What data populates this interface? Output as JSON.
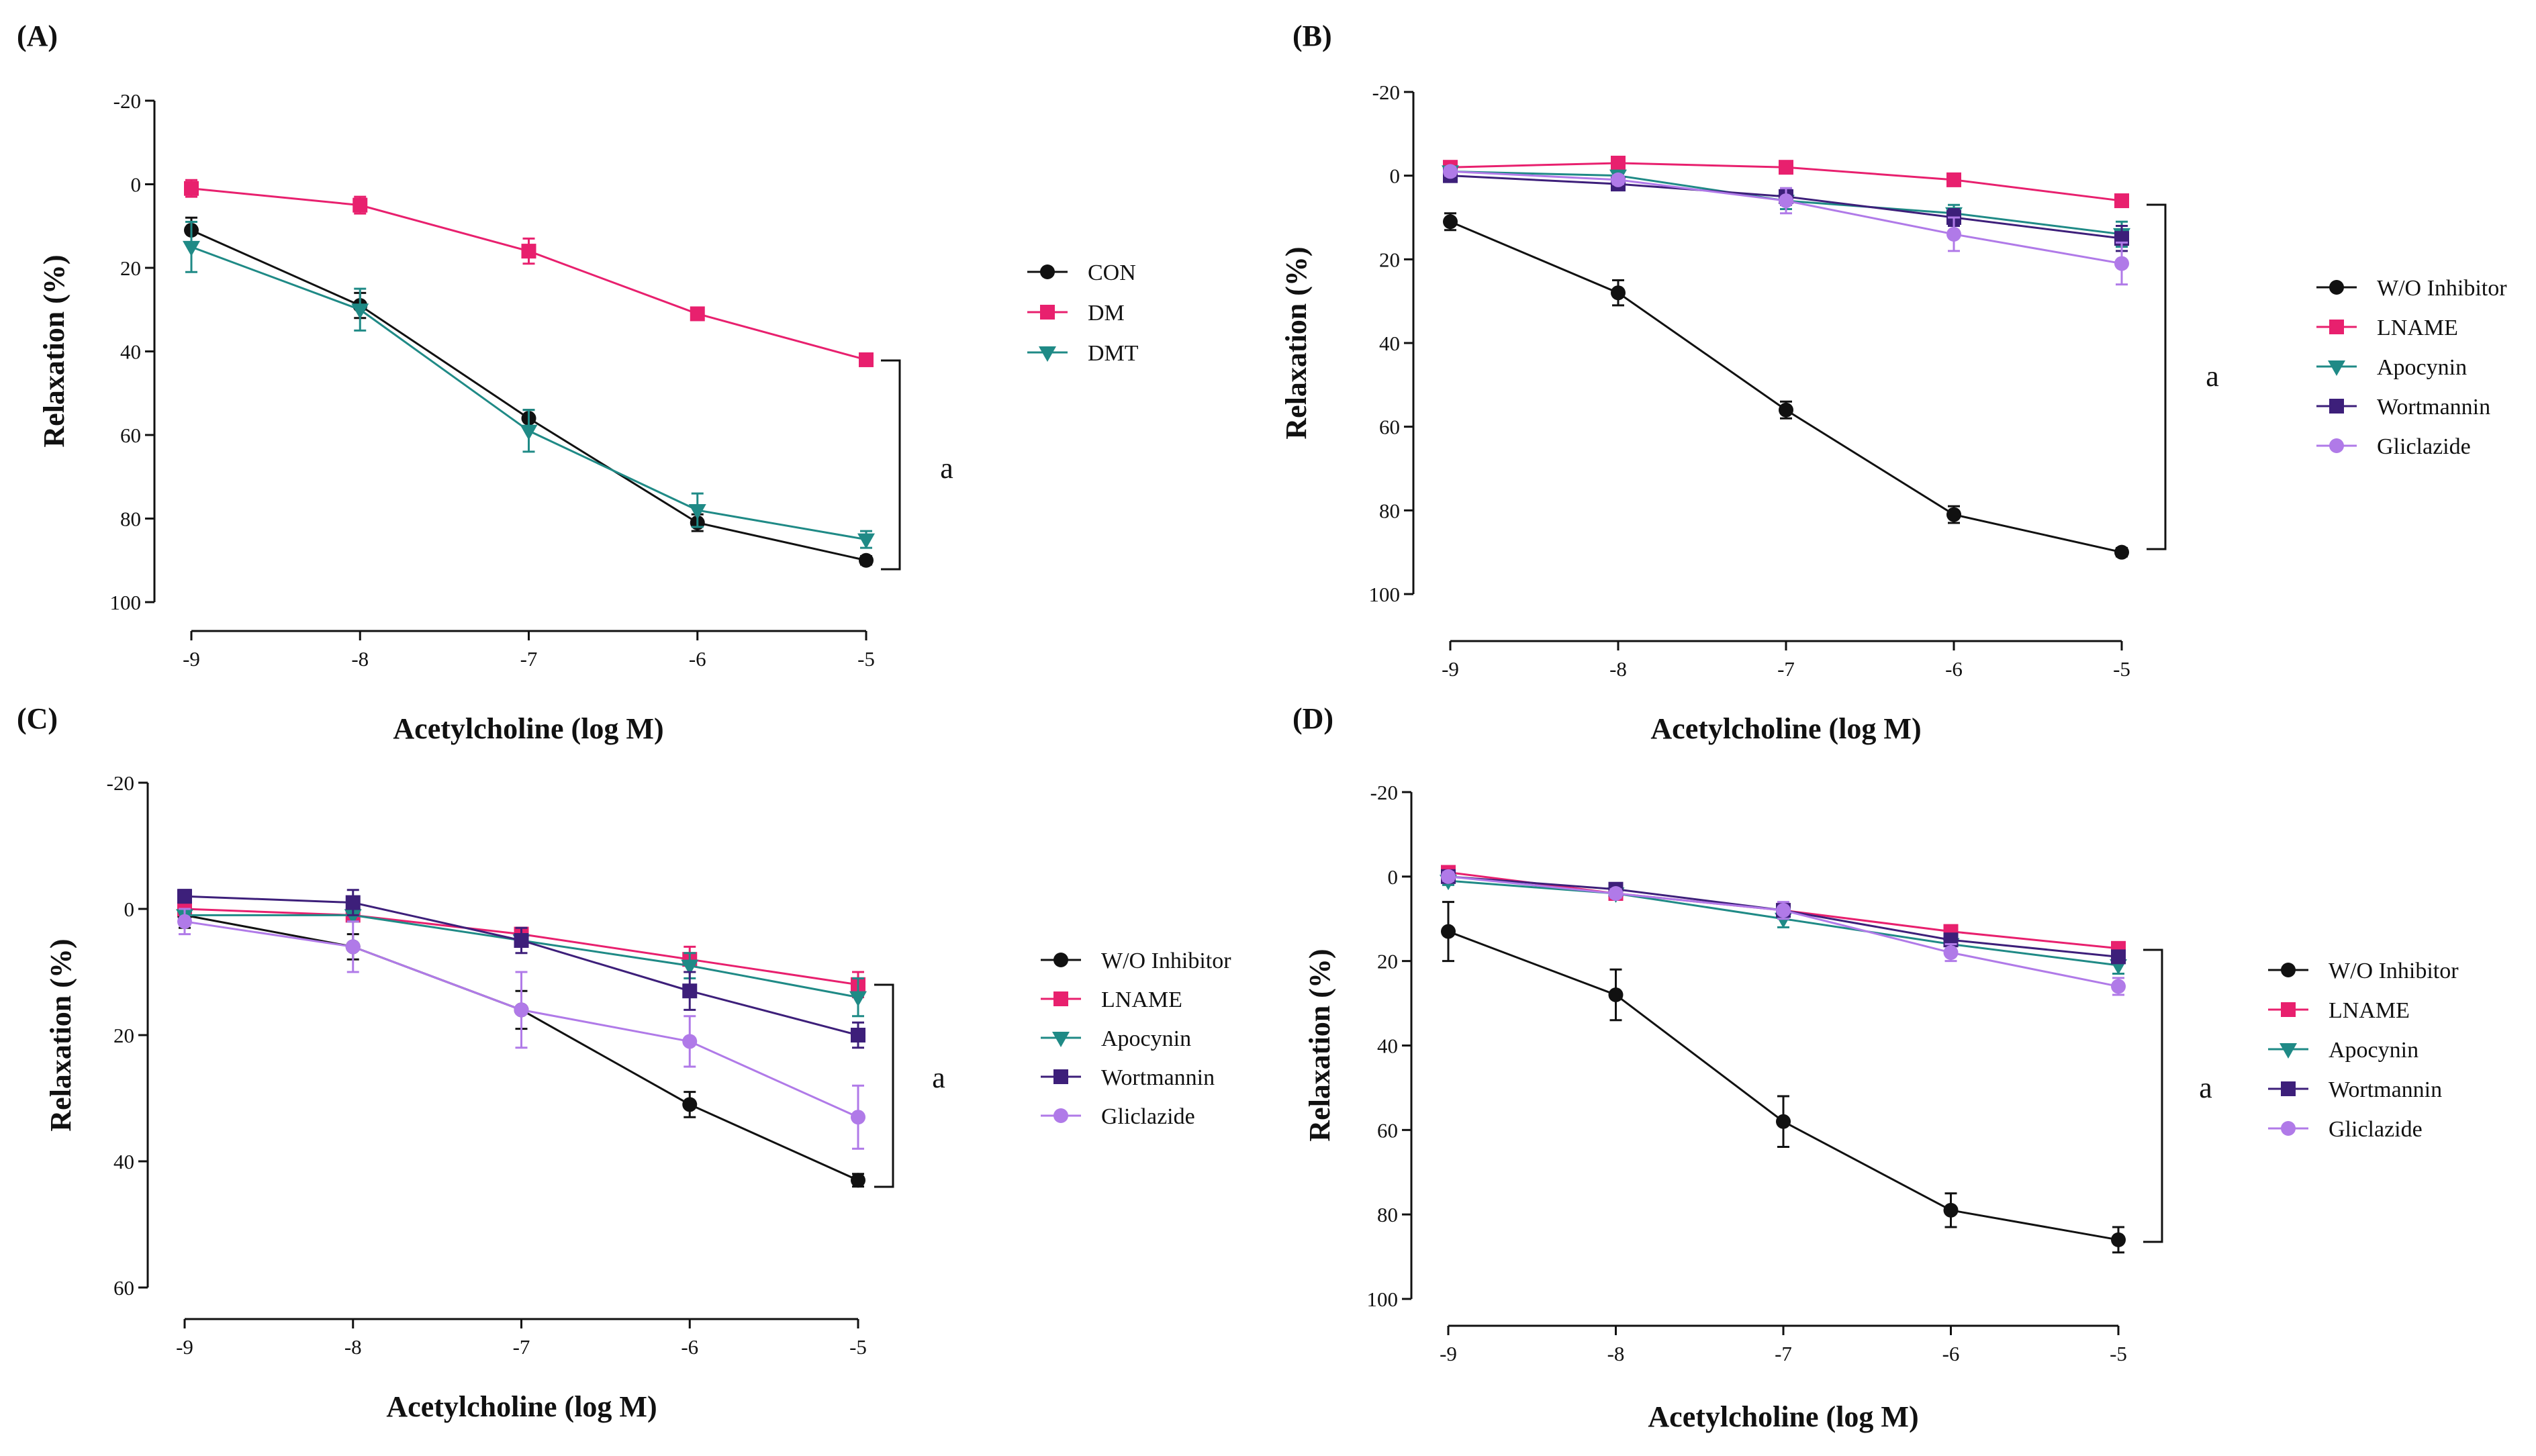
{
  "colors": {
    "black": "#111111",
    "pink": "#e8206e",
    "teal": "#1f8a86",
    "indigo": "#3d1f7a",
    "violet": "#b07ae8"
  },
  "chart_data": [
    {
      "panel": "(A)",
      "type": "line",
      "xlabel": "Acetylcholine (log M)",
      "ylabel": "Relaxation (%)",
      "x": [
        -9,
        -8,
        -7,
        -6,
        -5
      ],
      "xticks": [
        "-9",
        "-8",
        "-7",
        "-6",
        "-5"
      ],
      "ylim": [
        -20,
        100
      ],
      "yticks": [
        "-20",
        "0",
        "20",
        "40",
        "60",
        "80",
        "100"
      ],
      "yinverted": true,
      "legend_position": "right",
      "significance": "a",
      "series": [
        {
          "name": "CON",
          "color": "#111111",
          "marker": "circle",
          "values": [
            11,
            29,
            56,
            81,
            90
          ],
          "errors": [
            3,
            3,
            2,
            2,
            1
          ]
        },
        {
          "name": "DM",
          "color": "#e8206e",
          "marker": "square",
          "values": [
            1,
            5,
            16,
            31,
            42
          ],
          "errors": [
            2,
            2,
            3,
            1,
            1
          ]
        },
        {
          "name": "DMT",
          "color": "#1f8a86",
          "marker": "triangle-down",
          "values": [
            15,
            30,
            59,
            78,
            85
          ],
          "errors": [
            6,
            5,
            5,
            4,
            2
          ]
        }
      ]
    },
    {
      "panel": "(B)",
      "type": "line",
      "xlabel": "Acetylcholine (log M)",
      "ylabel": "Relaxation (%)",
      "x": [
        -9,
        -8,
        -7,
        -6,
        -5
      ],
      "xticks": [
        "-9",
        "-8",
        "-7",
        "-6",
        "-5"
      ],
      "ylim": [
        -20,
        100
      ],
      "yticks": [
        "-20",
        "0",
        "20",
        "40",
        "60",
        "80",
        "100"
      ],
      "yinverted": true,
      "legend_position": "right",
      "significance": "a",
      "series": [
        {
          "name": "W/O Inhibitor",
          "color": "#111111",
          "marker": "circle",
          "values": [
            11,
            28,
            56,
            81,
            90
          ],
          "errors": [
            2,
            3,
            2,
            2,
            1
          ]
        },
        {
          "name": "LNAME",
          "color": "#e8206e",
          "marker": "square",
          "values": [
            -2,
            -3,
            -2,
            1,
            6
          ],
          "errors": [
            1,
            1,
            1,
            1,
            1
          ]
        },
        {
          "name": "Apocynin",
          "color": "#1f8a86",
          "marker": "triangle-down",
          "values": [
            -1,
            0,
            6,
            9,
            14
          ],
          "errors": [
            1,
            1,
            2,
            2,
            3
          ]
        },
        {
          "name": "Wortmannin",
          "color": "#3d1f7a",
          "marker": "square",
          "values": [
            0,
            2,
            5,
            10,
            15
          ],
          "errors": [
            1,
            1,
            2,
            2,
            3
          ]
        },
        {
          "name": "Gliclazide",
          "color": "#b07ae8",
          "marker": "circle",
          "values": [
            -1,
            1,
            6,
            14,
            21
          ],
          "errors": [
            1,
            1,
            3,
            4,
            5
          ]
        }
      ]
    },
    {
      "panel": "(C)",
      "type": "line",
      "xlabel": "Acetylcholine (log M)",
      "ylabel": "Relaxation (%)",
      "x": [
        -9,
        -8,
        -7,
        -6,
        -5
      ],
      "xticks": [
        "-9",
        "-8",
        "-7",
        "-6",
        "-5"
      ],
      "ylim": [
        -20,
        60
      ],
      "yticks": [
        "-20",
        "0",
        "20",
        "40",
        "60"
      ],
      "yinverted": true,
      "legend_position": "right",
      "significance": "a",
      "series": [
        {
          "name": "W/O Inhibitor",
          "color": "#111111",
          "marker": "circle",
          "values": [
            1,
            6,
            16,
            31,
            43
          ],
          "errors": [
            2,
            2,
            3,
            2,
            1
          ]
        },
        {
          "name": "LNAME",
          "color": "#e8206e",
          "marker": "square",
          "values": [
            0,
            1,
            4,
            8,
            12
          ],
          "errors": [
            1,
            1,
            1,
            2,
            2
          ]
        },
        {
          "name": "Apocynin",
          "color": "#1f8a86",
          "marker": "triangle-down",
          "values": [
            1,
            1,
            5,
            9,
            14
          ],
          "errors": [
            1,
            1,
            1,
            2,
            3
          ]
        },
        {
          "name": "Wortmannin",
          "color": "#3d1f7a",
          "marker": "square",
          "values": [
            -2,
            -1,
            5,
            13,
            20
          ],
          "errors": [
            1,
            2,
            2,
            3,
            2
          ]
        },
        {
          "name": "Gliclazide",
          "color": "#b07ae8",
          "marker": "circle",
          "values": [
            2,
            6,
            16,
            21,
            33
          ],
          "errors": [
            2,
            4,
            6,
            4,
            5
          ]
        }
      ]
    },
    {
      "panel": "(D)",
      "type": "line",
      "xlabel": "Acetylcholine (log M)",
      "ylabel": "Relaxation (%)",
      "x": [
        -9,
        -8,
        -7,
        -6,
        -5
      ],
      "xticks": [
        "-9",
        "-8",
        "-7",
        "-6",
        "-5"
      ],
      "ylim": [
        -20,
        100
      ],
      "yticks": [
        "-20",
        "0",
        "20",
        "40",
        "60",
        "80",
        "100"
      ],
      "yinverted": true,
      "legend_position": "right",
      "significance": "a",
      "series": [
        {
          "name": "W/O Inhibitor",
          "color": "#111111",
          "marker": "circle",
          "values": [
            13,
            28,
            58,
            79,
            86
          ],
          "errors": [
            7,
            6,
            6,
            4,
            3
          ]
        },
        {
          "name": "LNAME",
          "color": "#e8206e",
          "marker": "square",
          "values": [
            -1,
            4,
            8,
            13,
            17
          ],
          "errors": [
            1,
            1,
            1,
            1,
            1
          ]
        },
        {
          "name": "Apocynin",
          "color": "#1f8a86",
          "marker": "triangle-down",
          "values": [
            1,
            4,
            10,
            16,
            21
          ],
          "errors": [
            1,
            1,
            2,
            2,
            2
          ]
        },
        {
          "name": "Wortmannin",
          "color": "#3d1f7a",
          "marker": "square",
          "values": [
            0,
            3,
            8,
            15,
            19
          ],
          "errors": [
            1,
            1,
            1,
            1,
            1
          ]
        },
        {
          "name": "Gliclazide",
          "color": "#b07ae8",
          "marker": "circle",
          "values": [
            0,
            4,
            8,
            18,
            26
          ],
          "errors": [
            1,
            1,
            2,
            2,
            2
          ]
        }
      ]
    }
  ]
}
